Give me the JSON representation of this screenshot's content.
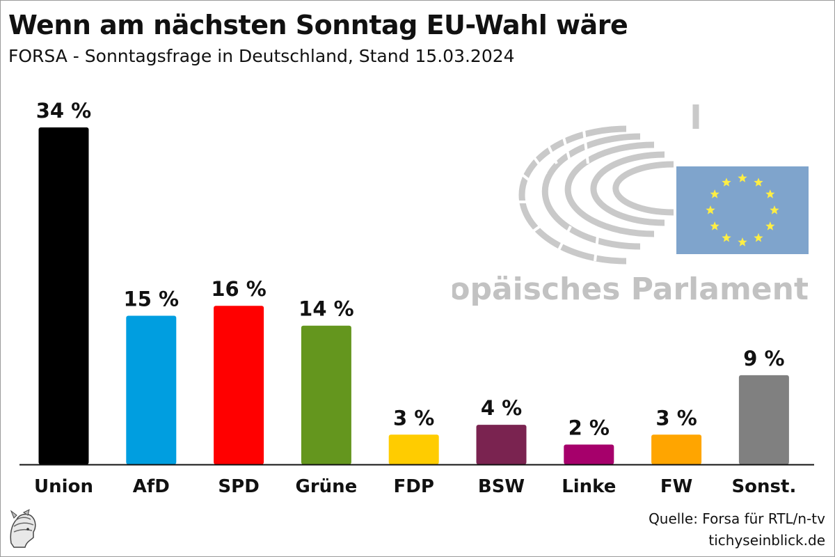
{
  "title": "Wenn am nächsten Sonntag EU-Wahl wäre",
  "subtitle": "FORSA - Sonntagsfrage in Deutschland, Stand 15.03.2024",
  "source_line": "Quelle: Forsa für RTL/n-tv",
  "website": "tichyseinblick.de",
  "watermark_text": "Europäisches Parlament",
  "icons": {
    "watermark": "european-parliament-hemicycle-flag-logo",
    "publisher": "hermes-head-logo"
  },
  "colors": {
    "flag_blue": "#7FA4CC",
    "flag_star": "#FFEE44",
    "watermark_gray": "#c2c2c2"
  },
  "chart_data": {
    "type": "bar",
    "categories": [
      "Union",
      "AfD",
      "SPD",
      "Grüne",
      "FDP",
      "BSW",
      "Linke",
      "FW",
      "Sonst."
    ],
    "values": [
      34,
      15,
      16,
      14,
      3,
      4,
      2,
      3,
      9
    ],
    "value_labels": [
      "34 %",
      "15 %",
      "16 %",
      "14 %",
      "3 %",
      "4 %",
      "2 %",
      "3 %",
      "9 %"
    ],
    "colors": [
      "#000000",
      "#009EE0",
      "#FF0000",
      "#64961E",
      "#FFCC00",
      "#7A2350",
      "#A6006B",
      "#FFA500",
      "#808080"
    ],
    "unit": "%",
    "ylim": [
      0,
      34
    ],
    "grid": false,
    "legend": "none"
  }
}
